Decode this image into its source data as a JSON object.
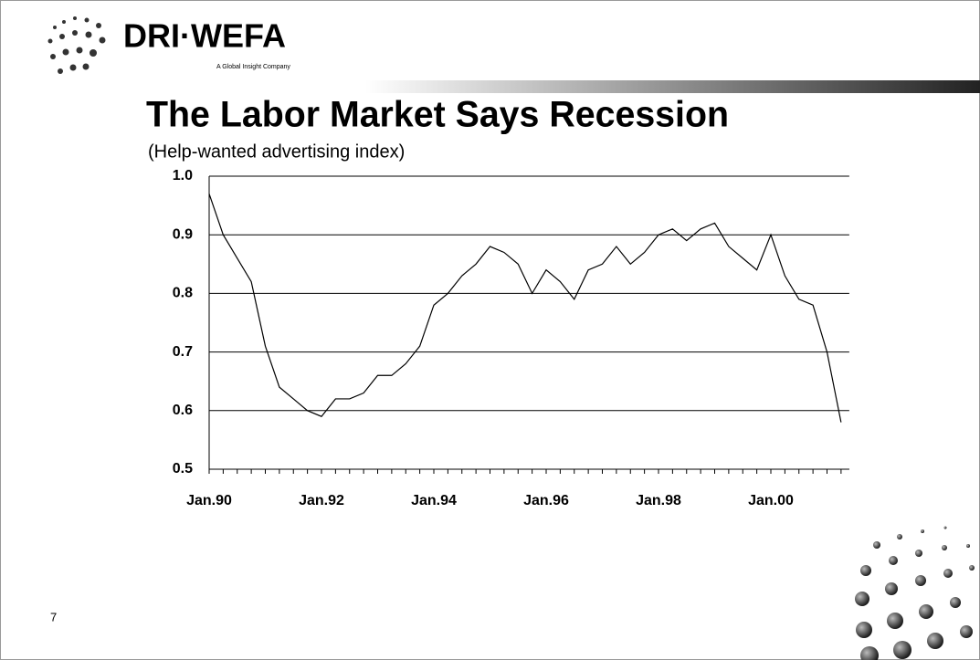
{
  "slide": {
    "logo": "DRI·WEFA",
    "tagline": "A Global Insight Company",
    "page_number": "7"
  },
  "chart_data": {
    "type": "line",
    "title": "The Labor Market Says Recession",
    "subtitle": "(Help-wanted advertising index)",
    "categories": [
      "Jan.90",
      null,
      null,
      null,
      null,
      null,
      null,
      null,
      "Jan.92",
      null,
      null,
      null,
      null,
      null,
      null,
      null,
      "Jan.94",
      null,
      null,
      null,
      null,
      null,
      null,
      null,
      "Jan.96",
      null,
      null,
      null,
      null,
      null,
      null,
      null,
      "Jan.98",
      null,
      null,
      null,
      null,
      null,
      null,
      null,
      "Jan.00",
      null,
      null,
      null,
      null,
      null
    ],
    "series": [
      {
        "name": "Help-wanted advertising index",
        "color": "#000000",
        "values": [
          0.97,
          0.9,
          0.86,
          0.82,
          0.71,
          0.64,
          0.62,
          0.6,
          0.59,
          0.62,
          0.62,
          0.63,
          0.66,
          0.66,
          0.68,
          0.71,
          0.78,
          0.8,
          0.83,
          0.85,
          0.88,
          0.87,
          0.85,
          0.8,
          0.84,
          0.82,
          0.79,
          0.84,
          0.85,
          0.88,
          0.85,
          0.87,
          0.9,
          0.91,
          0.89,
          0.91,
          0.92,
          0.88,
          0.86,
          0.84,
          0.9,
          0.83,
          0.79,
          0.78,
          0.7,
          0.58
        ]
      }
    ],
    "ylim": [
      0.5,
      1.0
    ],
    "yticks": [
      0.5,
      0.6,
      0.7,
      0.8,
      0.9,
      {
        "value": 1.0,
        "label": "1.0"
      }
    ],
    "grid": true
  }
}
